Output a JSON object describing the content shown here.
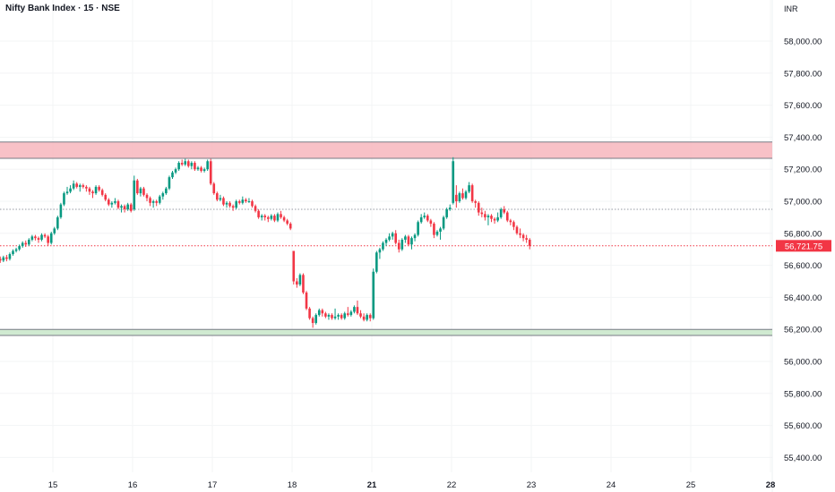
{
  "header": {
    "title": "Nifty Bank Index · 15 · NSE",
    "currency": "INR"
  },
  "colors": {
    "up": "#089981",
    "down": "#f23645",
    "resistance_zone": "#f7b6bd",
    "support_zone": "#c8e6c9",
    "last_price": "#f23645"
  },
  "chart_data": {
    "type": "candlestick",
    "interval": "15",
    "title": "Nifty Bank Index · 15 · NSE",
    "ylabel": "INR",
    "ylim": [
      55300,
      58120
    ],
    "y_ticks": [
      "58,000.00",
      "57,800.00",
      "57,600.00",
      "57,400.00",
      "57,200.00",
      "57,000.00",
      "56,800.00",
      "56,600.00",
      "56,400.00",
      "56,200.00",
      "56,000.00",
      "55,800.00",
      "55,600.00",
      "55,400.00"
    ],
    "y_tick_values": [
      58000,
      57800,
      57600,
      57400,
      57200,
      57000,
      56800,
      56600,
      56400,
      56200,
      56000,
      55800,
      55600,
      55400
    ],
    "x_ticks": [
      {
        "label": "15",
        "bold": false
      },
      {
        "label": "16",
        "bold": false
      },
      {
        "label": "17",
        "bold": false
      },
      {
        "label": "18",
        "bold": false
      },
      {
        "label": "21",
        "bold": true
      },
      {
        "label": "22",
        "bold": false
      },
      {
        "label": "23",
        "bold": false
      },
      {
        "label": "24",
        "bold": false
      },
      {
        "label": "25",
        "bold": false
      },
      {
        "label": "28",
        "bold": true
      }
    ],
    "candles_before_first_tick": 17,
    "candles_per_day": 25,
    "last_price": 56721.75,
    "last_price_label": "56,721.75",
    "reference_line": 56950,
    "resistance_zone": [
      57268,
      57370
    ],
    "support_zone": [
      56162,
      56200
    ],
    "grid": true,
    "candles_ohlc": [
      [
        56640,
        56655,
        56615,
        56630
      ],
      [
        56630,
        56660,
        56620,
        56650
      ],
      [
        56650,
        56665,
        56625,
        56640
      ],
      [
        56640,
        56680,
        56630,
        56670
      ],
      [
        56670,
        56700,
        56660,
        56690
      ],
      [
        56690,
        56710,
        56680,
        56700
      ],
      [
        56700,
        56730,
        56690,
        56720
      ],
      [
        56720,
        56750,
        56710,
        56740
      ],
      [
        56740,
        56755,
        56715,
        56730
      ],
      [
        56730,
        56770,
        56720,
        56760
      ],
      [
        56760,
        56790,
        56750,
        56780
      ],
      [
        56780,
        56790,
        56755,
        56770
      ],
      [
        56770,
        56780,
        56740,
        56760
      ],
      [
        56760,
        56800,
        56750,
        56790
      ],
      [
        56790,
        56800,
        56770,
        56780
      ],
      [
        56780,
        56790,
        56720,
        56740
      ],
      [
        56740,
        56810,
        56730,
        56800
      ],
      [
        56800,
        56840,
        56790,
        56830
      ],
      [
        56830,
        56910,
        56820,
        56900
      ],
      [
        56900,
        56990,
        56890,
        56980
      ],
      [
        56980,
        57060,
        56970,
        57050
      ],
      [
        57050,
        57090,
        57040,
        57060
      ],
      [
        57060,
        57100,
        57050,
        57080
      ],
      [
        57080,
        57130,
        57070,
        57110
      ],
      [
        57110,
        57120,
        57080,
        57090
      ],
      [
        57090,
        57110,
        57060,
        57100
      ],
      [
        57100,
        57110,
        57080,
        57090
      ],
      [
        57090,
        57100,
        57060,
        57080
      ],
      [
        57080,
        57090,
        57040,
        57060
      ],
      [
        57060,
        57070,
        57020,
        57050
      ],
      [
        57050,
        57100,
        57040,
        57090
      ],
      [
        57090,
        57100,
        57060,
        57070
      ],
      [
        57070,
        57080,
        57030,
        57040
      ],
      [
        57040,
        57050,
        57000,
        57010
      ],
      [
        57010,
        57020,
        56970,
        56980
      ],
      [
        56980,
        57000,
        56960,
        56990
      ],
      [
        56990,
        57020,
        56980,
        57000
      ],
      [
        57000,
        57010,
        56950,
        56960
      ],
      [
        56960,
        56980,
        56930,
        56970
      ],
      [
        56970,
        56980,
        56930,
        56950
      ],
      [
        56950,
        56990,
        56940,
        56980
      ],
      [
        56980,
        56990,
        56930,
        56940
      ],
      [
        56950,
        57160,
        56940,
        57130
      ],
      [
        57130,
        57140,
        57040,
        57050
      ],
      [
        57050,
        57090,
        57030,
        57080
      ],
      [
        57080,
        57090,
        57030,
        57040
      ],
      [
        57040,
        57050,
        57000,
        57020
      ],
      [
        57020,
        57030,
        56970,
        56990
      ],
      [
        56990,
        57010,
        56960,
        57000
      ],
      [
        57000,
        57010,
        56970,
        56990
      ],
      [
        56990,
        57040,
        56980,
        57030
      ],
      [
        57030,
        57060,
        57010,
        57050
      ],
      [
        57050,
        57090,
        57040,
        57080
      ],
      [
        57080,
        57160,
        57070,
        57150
      ],
      [
        57150,
        57190,
        57140,
        57180
      ],
      [
        57180,
        57210,
        57170,
        57200
      ],
      [
        57200,
        57250,
        57190,
        57240
      ],
      [
        57240,
        57260,
        57220,
        57230
      ],
      [
        57230,
        57265,
        57220,
        57250
      ],
      [
        57250,
        57260,
        57210,
        57220
      ],
      [
        57220,
        57250,
        57200,
        57240
      ],
      [
        57240,
        57250,
        57190,
        57200
      ],
      [
        57200,
        57220,
        57190,
        57210
      ],
      [
        57210,
        57220,
        57180,
        57190
      ],
      [
        57190,
        57210,
        57180,
        57200
      ],
      [
        57200,
        57260,
        57190,
        57250
      ],
      [
        57250,
        57265,
        57100,
        57110
      ],
      [
        57110,
        57120,
        57040,
        57050
      ],
      [
        57050,
        57060,
        57000,
        57010
      ],
      [
        57010,
        57040,
        57000,
        57020
      ],
      [
        57020,
        57030,
        56970,
        56980
      ],
      [
        56980,
        57000,
        56960,
        56990
      ],
      [
        56990,
        57000,
        56960,
        56970
      ],
      [
        56970,
        56980,
        56940,
        56960
      ],
      [
        56960,
        57010,
        56950,
        57000
      ],
      [
        57000,
        57010,
        56980,
        56990
      ],
      [
        56990,
        57030,
        56980,
        57010
      ],
      [
        57010,
        57020,
        56990,
        57000
      ],
      [
        57000,
        57020,
        56990,
        57000
      ],
      [
        57000,
        57010,
        56960,
        56970
      ],
      [
        56970,
        56980,
        56930,
        56940
      ],
      [
        56940,
        56950,
        56890,
        56900
      ],
      [
        56900,
        56920,
        56880,
        56910
      ],
      [
        56910,
        56920,
        56880,
        56900
      ],
      [
        56900,
        56910,
        56870,
        56890
      ],
      [
        56890,
        56920,
        56880,
        56910
      ],
      [
        56910,
        56920,
        56870,
        56880
      ],
      [
        56880,
        56930,
        56870,
        56920
      ],
      [
        56920,
        56940,
        56890,
        56900
      ],
      [
        56900,
        56910,
        56870,
        56880
      ],
      [
        56880,
        56890,
        56850,
        56860
      ],
      [
        56860,
        56870,
        56820,
        56830
      ],
      [
        56690,
        56690,
        56480,
        56500
      ],
      [
        56500,
        56520,
        56460,
        56480
      ],
      [
        56480,
        56550,
        56470,
        56540
      ],
      [
        56540,
        56550,
        56420,
        56430
      ],
      [
        56430,
        56440,
        56320,
        56330
      ],
      [
        56330,
        56340,
        56260,
        56270
      ],
      [
        56270,
        56280,
        56210,
        56240
      ],
      [
        56240,
        56300,
        56230,
        56290
      ],
      [
        56290,
        56330,
        56280,
        56320
      ],
      [
        56320,
        56330,
        56280,
        56300
      ],
      [
        56300,
        56310,
        56270,
        56280
      ],
      [
        56280,
        56300,
        56260,
        56290
      ],
      [
        56290,
        56300,
        56260,
        56270
      ],
      [
        56270,
        56330,
        56260,
        56280
      ],
      [
        56280,
        56300,
        56260,
        56290
      ],
      [
        56290,
        56300,
        56260,
        56270
      ],
      [
        56270,
        56310,
        56260,
        56300
      ],
      [
        56300,
        56340,
        56280,
        56290
      ],
      [
        56290,
        56320,
        56280,
        56310
      ],
      [
        56310,
        56350,
        56300,
        56340
      ],
      [
        56340,
        56380,
        56290,
        56300
      ],
      [
        56300,
        56320,
        56270,
        56280
      ],
      [
        56280,
        56300,
        56250,
        56260
      ],
      [
        56260,
        56300,
        56250,
        56290
      ],
      [
        56290,
        56300,
        56250,
        56270
      ],
      [
        56270,
        56580,
        56260,
        56560
      ],
      [
        56560,
        56690,
        56550,
        56680
      ],
      [
        56680,
        56710,
        56640,
        56700
      ],
      [
        56700,
        56750,
        56690,
        56740
      ],
      [
        56740,
        56770,
        56720,
        56760
      ],
      [
        56760,
        56800,
        56750,
        56780
      ],
      [
        56780,
        56810,
        56760,
        56800
      ],
      [
        56800,
        56820,
        56730,
        56740
      ],
      [
        56740,
        56760,
        56680,
        56700
      ],
      [
        56700,
        56770,
        56690,
        56760
      ],
      [
        56760,
        56790,
        56740,
        56780
      ],
      [
        56780,
        56790,
        56720,
        56730
      ],
      [
        56730,
        56780,
        56700,
        56770
      ],
      [
        56770,
        56800,
        56750,
        56790
      ],
      [
        56790,
        56880,
        56780,
        56870
      ],
      [
        56870,
        56920,
        56860,
        56900
      ],
      [
        56900,
        56930,
        56890,
        56910
      ],
      [
        56910,
        56920,
        56870,
        56880
      ],
      [
        56880,
        56890,
        56840,
        56860
      ],
      [
        56860,
        56870,
        56770,
        56790
      ],
      [
        56790,
        56820,
        56780,
        56810
      ],
      [
        56810,
        56840,
        56760,
        56830
      ],
      [
        56830,
        56910,
        56820,
        56900
      ],
      [
        56900,
        56960,
        56890,
        56950
      ],
      [
        56950,
        56980,
        56940,
        56960
      ],
      [
        56990,
        57275,
        56980,
        57250
      ],
      [
        57040,
        57100,
        56960,
        57000
      ],
      [
        57000,
        57060,
        56990,
        57050
      ],
      [
        57050,
        57080,
        57010,
        57020
      ],
      [
        57020,
        57070,
        57010,
        57060
      ],
      [
        57060,
        57120,
        57050,
        57100
      ],
      [
        57100,
        57110,
        56990,
        57000
      ],
      [
        57000,
        57010,
        56960,
        56990
      ],
      [
        56990,
        57000,
        56910,
        56930
      ],
      [
        56930,
        56960,
        56900,
        56920
      ],
      [
        56920,
        56940,
        56880,
        56900
      ],
      [
        56900,
        56920,
        56850,
        56910
      ],
      [
        56910,
        56920,
        56870,
        56890
      ],
      [
        56890,
        56900,
        56860,
        56880
      ],
      [
        56880,
        56930,
        56870,
        56900
      ],
      [
        56900,
        56960,
        56890,
        56950
      ],
      [
        56950,
        56970,
        56920,
        56930
      ],
      [
        56930,
        56940,
        56870,
        56880
      ],
      [
        56880,
        56890,
        56850,
        56870
      ],
      [
        56870,
        56880,
        56820,
        56840
      ],
      [
        56840,
        56850,
        56790,
        56800
      ],
      [
        56800,
        56830,
        56770,
        56790
      ],
      [
        56790,
        56800,
        56750,
        56770
      ],
      [
        56770,
        56790,
        56740,
        56760
      ],
      [
        56760,
        56770,
        56700,
        56722
      ]
    ]
  }
}
